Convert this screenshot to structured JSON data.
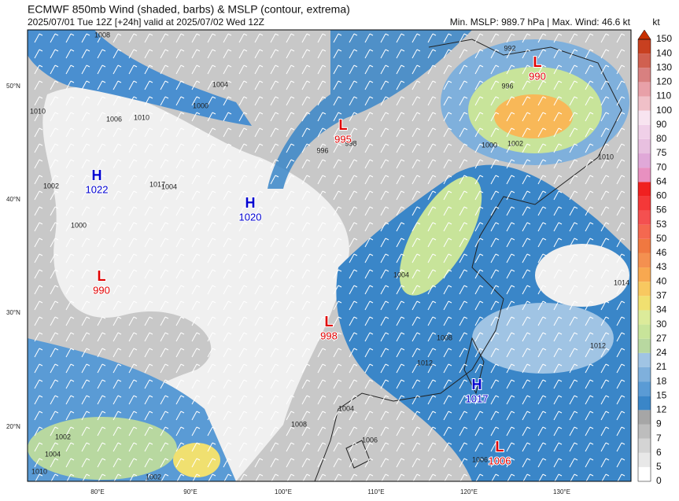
{
  "header": {
    "title": "ECMWF 850mb Wind (shaded, barbs) & MSLP (contour, extrema)",
    "subtitle": "2025/07/01 Tue 12Z [+24h] valid at 2025/07/02 Wed 12Z",
    "info": "Min. MSLP: 989.7 hPa | Max. Wind: 46.6 kt"
  },
  "colorbar": {
    "unit": "kt",
    "levels": [
      "0",
      "5",
      "6",
      "7",
      "9",
      "12",
      "15",
      "18",
      "21",
      "24",
      "27",
      "30",
      "34",
      "37",
      "40",
      "43",
      "46",
      "50",
      "53",
      "56",
      "60",
      "64",
      "70",
      "75",
      "80",
      "90",
      "100",
      "110",
      "120",
      "130",
      "140",
      "150"
    ]
  },
  "map": {
    "lat_labels": [
      "50°N",
      "40°N",
      "30°N",
      "20°N"
    ],
    "lon_labels": [
      "80°E",
      "90°E",
      "100°E",
      "110°E",
      "120°E",
      "130°E"
    ],
    "extrema": [
      {
        "symbol": "L",
        "value": "990"
      },
      {
        "symbol": "L",
        "value": "995"
      },
      {
        "symbol": "H",
        "value": "1022"
      },
      {
        "symbol": "H",
        "value": "1020"
      },
      {
        "symbol": "L",
        "value": "990"
      },
      {
        "symbol": "L",
        "value": "998"
      },
      {
        "symbol": "H",
        "value": "1017"
      },
      {
        "symbol": "L",
        "value": "1006"
      }
    ],
    "contour_labels": [
      "1008",
      "1010",
      "1004",
      "1010",
      "1006",
      "1000",
      "1002",
      "1017",
      "1004",
      "1000",
      "996",
      "998",
      "992",
      "996",
      "1000",
      "1002",
      "1010",
      "1004",
      "1008",
      "1012",
      "1014",
      "1002",
      "1004",
      "1006",
      "1002",
      "1008",
      "1012",
      "1006",
      "1004",
      "1010"
    ]
  }
}
